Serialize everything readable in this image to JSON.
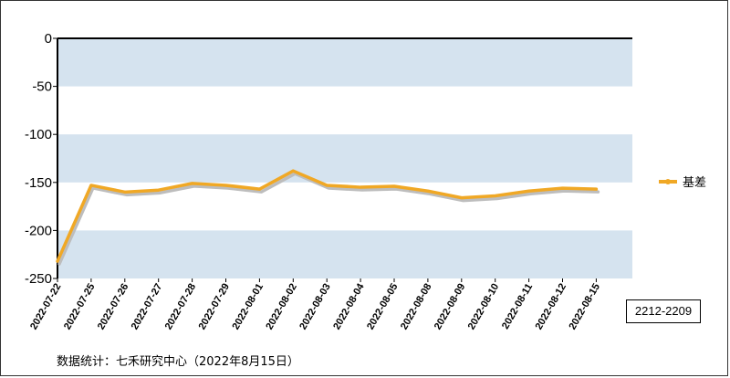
{
  "chart_data": {
    "type": "line",
    "x": [
      "2022-07-22",
      "2022-07-25",
      "2022-07-26",
      "2022-07-27",
      "2022-07-28",
      "2022-07-29",
      "2022-08-01",
      "2022-08-02",
      "2022-08-03",
      "2022-08-04",
      "2022-08-05",
      "2022-08-08",
      "2022-08-09",
      "2022-08-10",
      "2022-08-11",
      "2022-08-12",
      "2022-08-15"
    ],
    "series": [
      {
        "name": "基差",
        "values": [
          -232,
          -153,
          -160,
          -158,
          -151,
          -153,
          -157,
          -138,
          -153,
          -155,
          -154,
          -159,
          -166,
          -164,
          -159,
          -156,
          -157
        ],
        "color": "#f0a825"
      }
    ],
    "yticks": [
      "0",
      "-50",
      "-100",
      "-150",
      "-200",
      "-250"
    ],
    "ylim": [
      -250,
      0
    ],
    "band_color": "#d5e3ef",
    "legend_position": "right"
  },
  "contract_label": "2212-2209",
  "source_note": "数据统计：七禾研究中心（2022年8月15日）"
}
